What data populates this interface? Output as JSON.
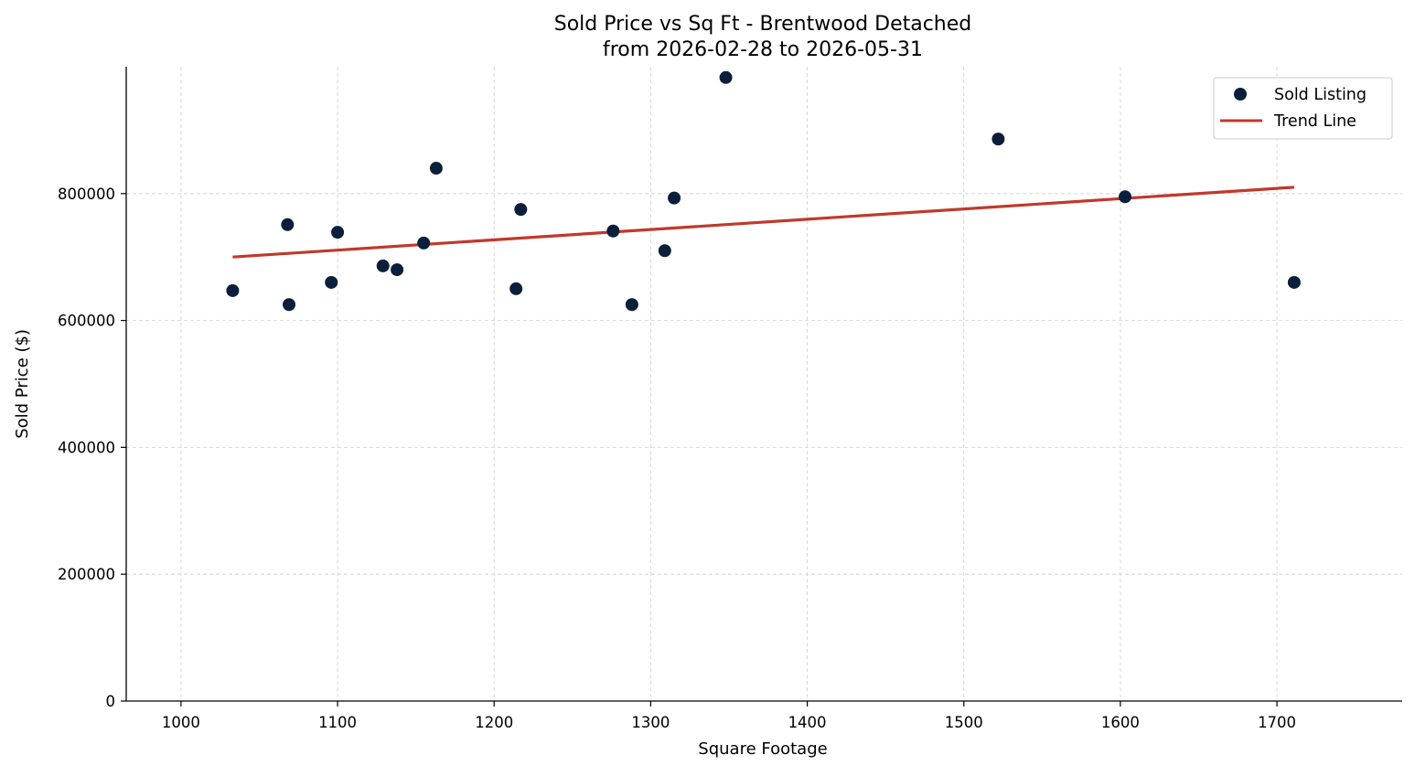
{
  "chart_data": {
    "type": "scatter",
    "title": "Sold Price vs Sq Ft - Brentwood Detached",
    "subtitle": "from 2026-02-28 to 2026-05-31",
    "xlabel": "Square Footage",
    "ylabel": "Sold Price ($)",
    "xlim": [
      965,
      1780
    ],
    "ylim": [
      0,
      1000000
    ],
    "xticks": [
      1000,
      1100,
      1200,
      1300,
      1400,
      1500,
      1600,
      1700
    ],
    "yticks": [
      0,
      200000,
      400000,
      600000,
      800000
    ],
    "grid": true,
    "legend_position": "top-right",
    "colors": {
      "points": "#0b1f3a",
      "trend": "#c0392b",
      "grid": "#d0d0d0"
    },
    "series": [
      {
        "name": "Sold Listing",
        "kind": "scatter",
        "points": [
          {
            "x": 1033,
            "y": 647000
          },
          {
            "x": 1068,
            "y": 751000
          },
          {
            "x": 1069,
            "y": 625000
          },
          {
            "x": 1096,
            "y": 660000
          },
          {
            "x": 1100,
            "y": 739000
          },
          {
            "x": 1129,
            "y": 686000
          },
          {
            "x": 1138,
            "y": 680000
          },
          {
            "x": 1155,
            "y": 722000
          },
          {
            "x": 1163,
            "y": 840000
          },
          {
            "x": 1214,
            "y": 650000
          },
          {
            "x": 1217,
            "y": 775000
          },
          {
            "x": 1276,
            "y": 741000
          },
          {
            "x": 1288,
            "y": 625000
          },
          {
            "x": 1309,
            "y": 710000
          },
          {
            "x": 1315,
            "y": 793000
          },
          {
            "x": 1348,
            "y": 983000
          },
          {
            "x": 1522,
            "y": 886000
          },
          {
            "x": 1603,
            "y": 795000
          },
          {
            "x": 1711,
            "y": 660000
          }
        ]
      },
      {
        "name": "Trend Line",
        "kind": "line",
        "points": [
          {
            "x": 1033,
            "y": 700000
          },
          {
            "x": 1711,
            "y": 810000
          }
        ]
      }
    ]
  }
}
